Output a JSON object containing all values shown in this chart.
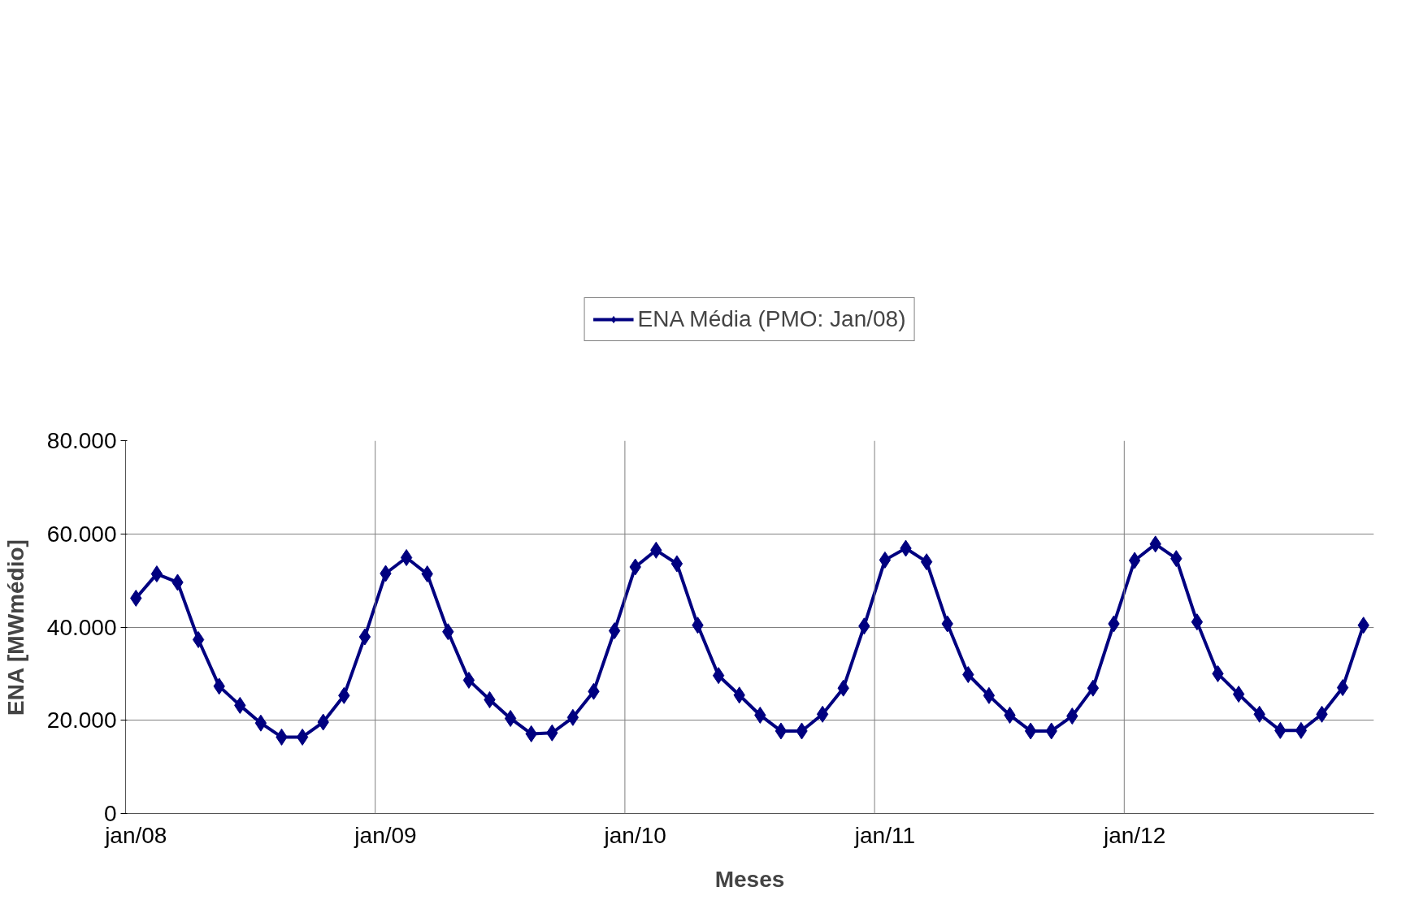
{
  "chart_data": {
    "type": "line",
    "xlabel": "Meses",
    "ylabel": "ENA [MWmédio]",
    "categories": [
      "jan/08",
      null,
      null,
      null,
      null,
      null,
      null,
      null,
      null,
      null,
      null,
      null,
      "jan/09",
      null,
      null,
      null,
      null,
      null,
      null,
      null,
      null,
      null,
      null,
      null,
      "jan/10",
      null,
      null,
      null,
      null,
      null,
      null,
      null,
      null,
      null,
      null,
      null,
      "jan/11",
      null,
      null,
      null,
      null,
      null,
      null,
      null,
      null,
      null,
      null,
      null,
      "jan/12",
      null,
      null,
      null,
      null,
      null,
      null,
      null,
      null,
      null,
      null,
      null
    ],
    "series": [
      {
        "name": "ENA Média (PMO: Jan/08)",
        "color": "#000080",
        "values": [
          46200,
          51400,
          49600,
          37300,
          27300,
          23200,
          19400,
          16400,
          16400,
          19600,
          25300,
          37900,
          51500,
          54900,
          51400,
          39000,
          28600,
          24400,
          20400,
          17100,
          17300,
          20600,
          26200,
          39200,
          52900,
          56500,
          53600,
          40400,
          29600,
          25400,
          21100,
          17700,
          17700,
          21300,
          26900,
          40200,
          54400,
          56900,
          54000,
          40700,
          29800,
          25300,
          21100,
          17700,
          17700,
          20900,
          26900,
          40700,
          54300,
          57800,
          54700,
          41100,
          30000,
          25600,
          21300,
          17800,
          17800,
          21300,
          27000,
          40400
        ]
      }
    ],
    "ylim": [
      0,
      80000
    ],
    "yticks": [
      {
        "value": 0,
        "label": "0"
      },
      {
        "value": 20000,
        "label": "20.000"
      },
      {
        "value": 40000,
        "label": "40.000"
      },
      {
        "value": 60000,
        "label": "60.000"
      },
      {
        "value": 80000,
        "label": "80.000"
      }
    ],
    "grid": true,
    "legend": "top",
    "marker": "diamond",
    "line_style": "solid"
  }
}
